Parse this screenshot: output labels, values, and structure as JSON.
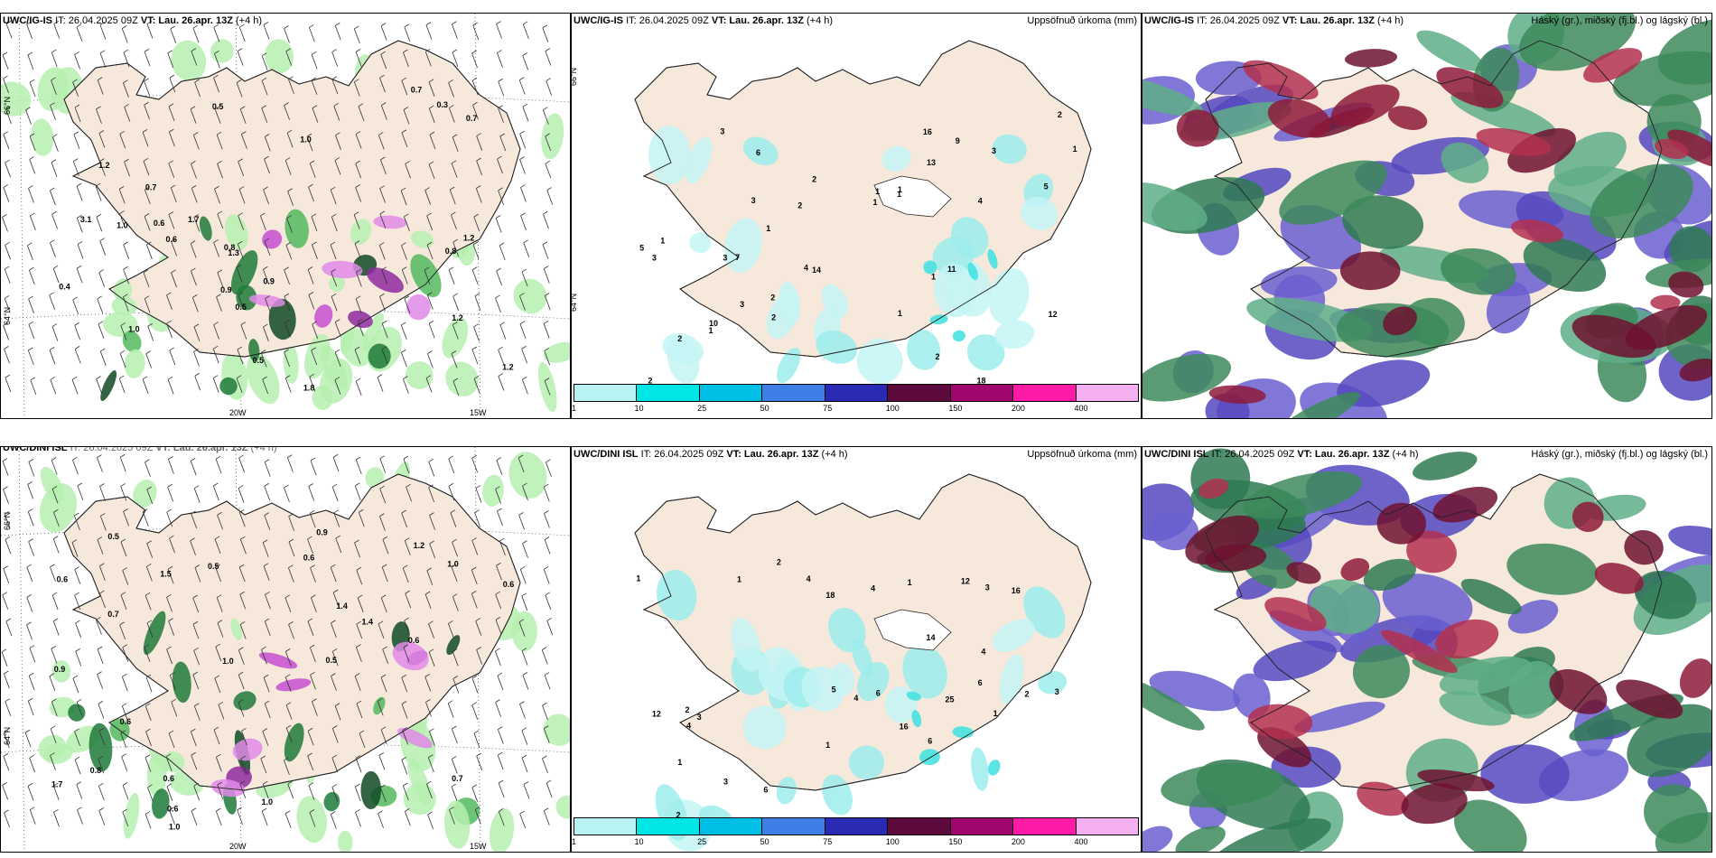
{
  "rows": [
    {
      "model": "UWC/IG-IS",
      "left_title_wrapped": false,
      "init": "IT: 26.04.2025 09Z",
      "valid": "VT: Lau. 26.apr. 13Z",
      "lead": "(+4 h)",
      "wind_labels": [
        "0.6",
        "0.7",
        "0.5",
        "1.2",
        "0.3",
        "0.5",
        "1.0",
        "0.7",
        "3.1",
        "0.8",
        "0.8",
        "0.7",
        "0.9",
        "1.2",
        "1.0",
        "0.5",
        "1.2",
        "1.0",
        "1.3",
        "0.9",
        "1.7",
        "1.8",
        "0.4",
        "1.2",
        "0.6"
      ],
      "precip_labels": [
        "3",
        "2",
        "1",
        "1",
        "2",
        "1",
        "1",
        "1",
        "1",
        "2",
        "3",
        "3",
        "5",
        "7",
        "4",
        "3",
        "2",
        "10",
        "9",
        "12",
        "18",
        "14",
        "6",
        "5",
        "2",
        "4",
        "2",
        "1",
        "1",
        "3",
        "11",
        "3",
        "1",
        "2",
        "16",
        "13",
        "2",
        "1"
      ]
    },
    {
      "model": "UWC/DINI ISL",
      "left_title_wrapped": true,
      "init": "IT: 26.04.2025 09Z",
      "valid": "VT: Lau. 26.apr. 13Z",
      "lead": "(+4 h)",
      "wind_labels": [
        "0.6",
        "0.9",
        "0.6",
        "0.5",
        "0.6",
        "0.6",
        "0.5",
        "1.0",
        "1.4",
        "1.5",
        "1.0",
        "0.8",
        "1.7",
        "0.6",
        "1.2",
        "0.6",
        "1.4",
        "0.9",
        "1.0",
        "0.7",
        "0.7",
        "0.5",
        "0.6",
        "1.0"
      ],
      "precip_labels": [
        "5",
        "1",
        "1",
        "1",
        "3",
        "2",
        "6",
        "3",
        "4",
        "2",
        "6",
        "6",
        "6",
        "4",
        "12",
        "25",
        "16",
        "16",
        "14",
        "12",
        "1",
        "4",
        "4",
        "2",
        "6",
        "2",
        "1",
        "3",
        "18",
        "4",
        "1",
        "3"
      ]
    }
  ],
  "precip_title": "Uppsöfnuð úrkoma (mm)",
  "cloud_title": "Háský (gr.), miðský (fj.bl.) og lágský (bl.)",
  "lat_label": "66°N",
  "lat_label2": "64°N",
  "lon_labels": [
    "20W",
    "15W"
  ],
  "colorbar": {
    "ticks": [
      "1",
      "10",
      "25",
      "50",
      "75",
      "100",
      "150",
      "200",
      "400"
    ],
    "colors": [
      "#b8f2f2",
      "#00e6e6",
      "#00bfe6",
      "#3d7fe6",
      "#2a2ab4",
      "#5e0a3c",
      "#a0066e",
      "#ff1aa8",
      "#f4b0f0"
    ]
  },
  "colors": {
    "land": "#f7e8dc",
    "wind_green_light": "#b6f0b0",
    "wind_green_dark": "#0f4a24",
    "wind_purple": "#c54fd0",
    "precip_cyan": "#c4f5f5",
    "cloud_high": "#3d8a5a",
    "cloud_mid": "#8e1a3a",
    "cloud_low": "#5548c0"
  }
}
